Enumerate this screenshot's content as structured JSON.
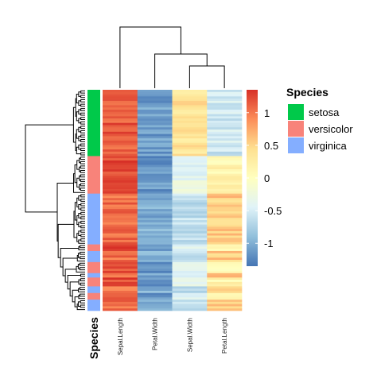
{
  "chart_data": {
    "type": "heatmap",
    "columns": [
      "Sepal.Length",
      "Petal.Width",
      "Sepal.Width",
      "Petal.Length"
    ],
    "annotation": {
      "title": "Species",
      "legend": [
        {
          "label": "setosa",
          "color": "#00C94A"
        },
        {
          "label": "versicolor",
          "color": "#F8837A"
        },
        {
          "label": "virginica",
          "color": "#84AEFF"
        }
      ],
      "row_groups": [
        {
          "species": "setosa",
          "rows": 30
        },
        {
          "species": "versicolor",
          "rows": 17
        },
        {
          "species": "virginica",
          "rows": 23
        },
        {
          "species": "versicolor",
          "rows": 3
        },
        {
          "species": "virginica",
          "rows": 5
        },
        {
          "species": "versicolor",
          "rows": 5
        },
        {
          "species": "virginica",
          "rows": 2
        },
        {
          "species": "versicolor",
          "rows": 4
        },
        {
          "species": "virginica",
          "rows": 3
        },
        {
          "species": "versicolor",
          "rows": 3
        },
        {
          "species": "virginica",
          "rows": 5
        }
      ]
    },
    "color_scale": {
      "ticks": [
        1,
        0.5,
        0,
        -0.5,
        -1
      ],
      "tick_labels": [
        "1",
        "0.5",
        "0",
        "-0.5",
        "-1"
      ],
      "range": [
        -1.35,
        1.35
      ],
      "palette": [
        "#4575B4",
        "#91BFDB",
        "#E0F3F8",
        "#FFFFBF",
        "#FEE090",
        "#FC8D59",
        "#D73027"
      ]
    },
    "group_column_means": {
      "setosa": [
        1.15,
        -1.1,
        0.38,
        -0.55
      ],
      "versicolor": [
        1.25,
        -1.15,
        -0.35,
        0.15
      ],
      "virginica": [
        1.05,
        -1.0,
        -0.62,
        0.55
      ]
    },
    "column_dendrogram": "((Sepal.Length),(Petal.Width,(Sepal.Width,Petal.Length)))",
    "row_dendrogram": true
  }
}
